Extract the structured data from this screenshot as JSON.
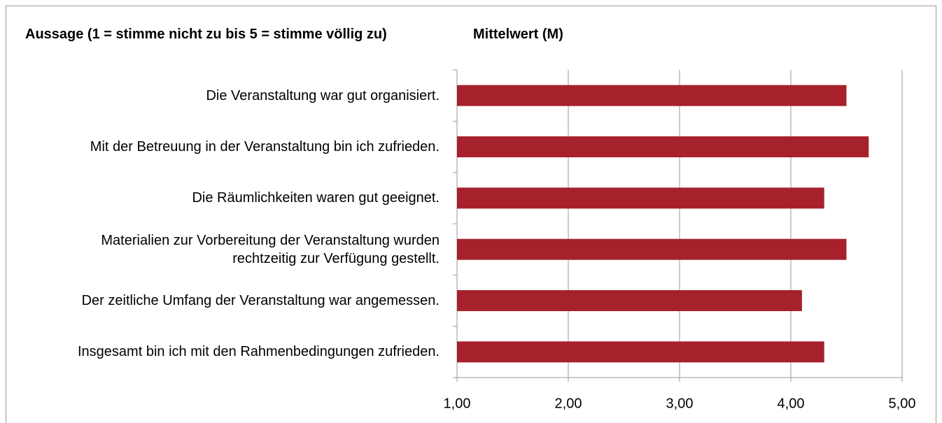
{
  "chart_data": {
    "type": "barh",
    "title": "Aussage (1 = stimme nicht zu bis 5 = stimme völlig zu)",
    "xlabel": "Mittelwert (M)",
    "categories": [
      "Die Veranstaltung war gut organisiert.",
      "Mit der Betreuung in der Veranstaltung bin ich zufrieden.",
      "Die Räumlichkeiten waren gut geeignet.",
      "Materialien zur Vorbereitung der Veranstaltung wurden\nrechtzeitig zur Verfügung gestellt.",
      "Der zeitliche Umfang der Veranstaltung war angemessen.",
      "Insgesamt bin ich mit den Rahmenbedingungen zufrieden."
    ],
    "values": [
      4.5,
      4.7,
      4.3,
      4.5,
      4.1,
      4.3
    ],
    "color": "#a6212b",
    "xlim": [
      1,
      5
    ],
    "xticks": [
      {
        "value": 1,
        "label": "1,00"
      },
      {
        "value": 2,
        "label": "2,00"
      },
      {
        "value": 3,
        "label": "3,00"
      },
      {
        "value": 4,
        "label": "4,00"
      },
      {
        "value": 5,
        "label": "5,00"
      }
    ],
    "grid": true
  }
}
